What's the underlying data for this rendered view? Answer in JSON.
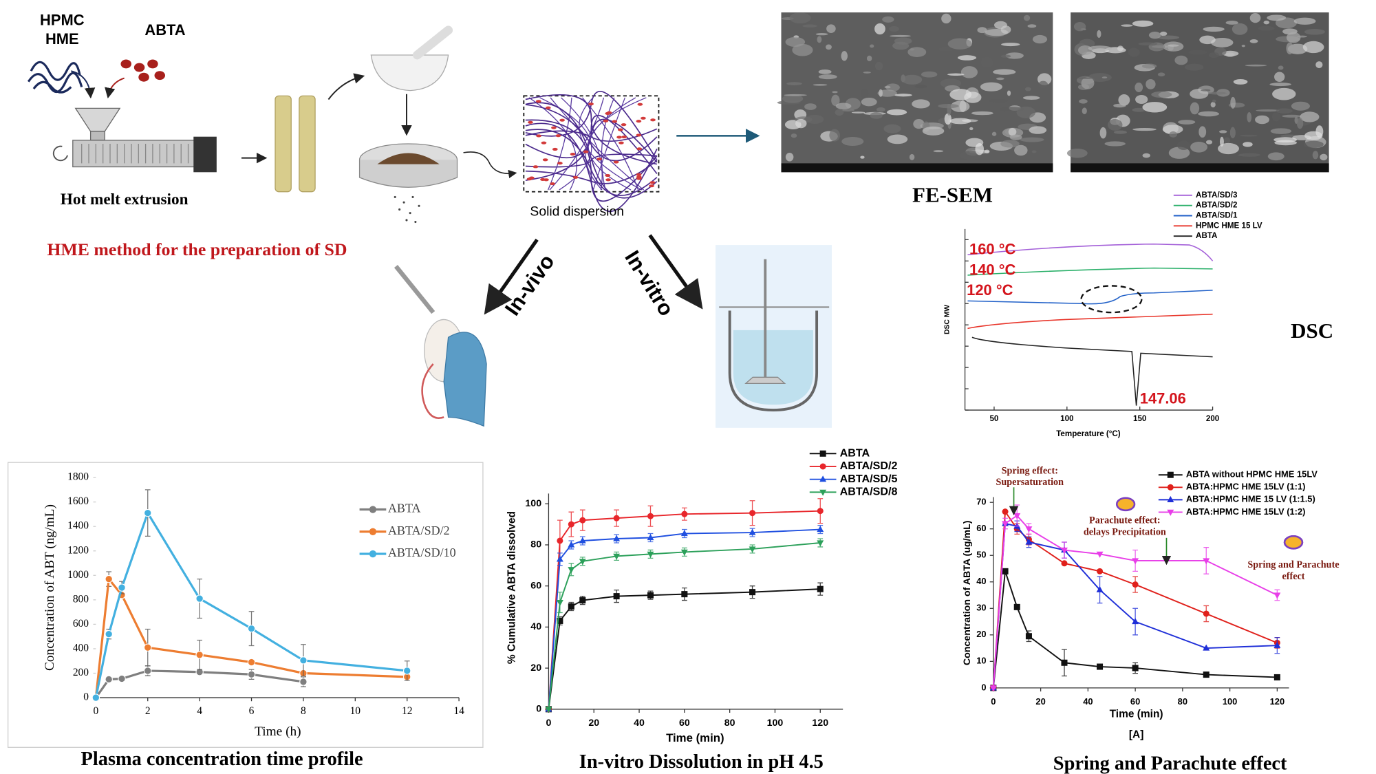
{
  "labels": {
    "polymer": [
      "HPMC",
      "HME"
    ],
    "drug": "ABTA",
    "process": "Hot melt extrusion",
    "method": "HME method for the preparation of SD",
    "product": "Solid dispersion",
    "sem": "FE-SEM",
    "in_vivo": "In-vivo",
    "in_vitro": "In-vitro"
  },
  "chart_data": [
    {
      "type": "line",
      "title": "Plasma concentration time profile",
      "xlabel": "Time (h)",
      "ylabel": "Concentration of ABT (ng/mL)",
      "x": [
        0,
        0.5,
        1,
        2,
        4,
        6,
        8,
        12
      ],
      "xlim": [
        0,
        14
      ],
      "xticks": [
        0,
        2,
        4,
        6,
        8,
        10,
        12,
        14
      ],
      "ylim": [
        0,
        1800
      ],
      "yticks": [
        0,
        200,
        400,
        600,
        800,
        1000,
        1200,
        1400,
        1600,
        1800
      ],
      "series": [
        {
          "name": "ABTA",
          "color": "#7f7f7f",
          "marker": "circle",
          "values": [
            0,
            150,
            155,
            220,
            210,
            190,
            130,
            null
          ],
          "errors": [
            0,
            0,
            0,
            40,
            0,
            40,
            40,
            null
          ]
        },
        {
          "name": "ABTA/SD/2",
          "color": "#ed7d31",
          "marker": "circle",
          "values": [
            0,
            970,
            840,
            410,
            350,
            290,
            200,
            170
          ],
          "errors": [
            0,
            60,
            0,
            150,
            120,
            0,
            0,
            15
          ]
        },
        {
          "name": "ABTA/SD/10",
          "color": "#43b0e0",
          "marker": "circle",
          "values": [
            0,
            520,
            900,
            1510,
            810,
            565,
            305,
            220
          ],
          "errors": [
            0,
            40,
            50,
            190,
            160,
            140,
            130,
            80
          ]
        }
      ]
    },
    {
      "type": "line",
      "title": "In-vitro Dissolution in pH 4.5",
      "xlabel": "Time (min)",
      "ylabel": "% Cumulative ABTA dissolved",
      "x": [
        0,
        5,
        10,
        15,
        30,
        45,
        60,
        90,
        120
      ],
      "xlim": [
        0,
        130
      ],
      "xticks": [
        0,
        20,
        40,
        60,
        80,
        100,
        120
      ],
      "ylim": [
        0,
        105
      ],
      "yticks": [
        0,
        20,
        40,
        60,
        80,
        100
      ],
      "series": [
        {
          "name": "ABTA",
          "color": "#111111",
          "marker": "square",
          "values": [
            0,
            43,
            50,
            53,
            55,
            55.5,
            56,
            57,
            58.5
          ],
          "errors": [
            0,
            2,
            2,
            2,
            3,
            2,
            3,
            3,
            3
          ]
        },
        {
          "name": "ABTA/SD/2",
          "color": "#e8262b",
          "marker": "circle",
          "values": [
            0,
            82,
            90,
            92,
            93,
            94,
            95,
            95.5,
            96.5
          ],
          "errors": [
            0,
            10,
            6,
            5,
            4,
            5,
            3,
            6,
            6
          ]
        },
        {
          "name": "ABTA/SD/5",
          "color": "#1f4fe0",
          "marker": "triangle-up",
          "values": [
            0,
            73,
            80,
            82,
            83,
            83.5,
            85.5,
            86,
            87.5
          ],
          "errors": [
            0,
            3,
            2,
            2,
            2,
            2,
            2,
            2,
            2
          ]
        },
        {
          "name": "ABTA/SD/8",
          "color": "#2ca05a",
          "marker": "triangle-down",
          "values": [
            0,
            52,
            68,
            72,
            74.5,
            75.5,
            76.5,
            78,
            81
          ],
          "errors": [
            0,
            5,
            3,
            2,
            2,
            2,
            2,
            2,
            2
          ]
        }
      ]
    },
    {
      "type": "line",
      "title": "Spring and Parachute effect",
      "xlabel": "Time (min)",
      "ylabel": "Concentration of ABTA (ug/mL)",
      "panel_label": "[A]",
      "annotations": [
        [
          "Spring effect:",
          "Supersaturation"
        ],
        [
          "Parachute effect:",
          "delays Precipitation"
        ],
        [
          "Spring and Parachute",
          "effect"
        ]
      ],
      "x": [
        0,
        5,
        10,
        15,
        30,
        45,
        60,
        90,
        120
      ],
      "xlim": [
        0,
        125
      ],
      "xticks": [
        0,
        20,
        40,
        60,
        80,
        100,
        120
      ],
      "ylim": [
        0,
        72
      ],
      "yticks": [
        0,
        10,
        20,
        30,
        40,
        50,
        60,
        70
      ],
      "series": [
        {
          "name": "ABTA without HPMC HME 15LV",
          "color": "#111111",
          "marker": "square",
          "values": [
            0,
            44,
            30.5,
            19.5,
            9.5,
            8,
            7.5,
            5,
            4
          ],
          "errors": [
            0,
            0,
            0,
            2,
            5,
            0,
            2,
            0,
            0
          ]
        },
        {
          "name": "ABTA:HPMC HME 15LV (1:1)",
          "color": "#e0201b",
          "marker": "circle",
          "values": [
            0,
            66.5,
            60,
            56,
            47,
            44,
            39,
            28,
            17
          ],
          "errors": [
            0,
            0,
            2,
            2,
            0,
            0,
            3,
            3,
            2
          ]
        },
        {
          "name": "ABTA:HPMC HME 15 LV (1:1.5)",
          "color": "#1f2fd8",
          "marker": "triangle-up",
          "values": [
            0,
            62,
            61,
            55,
            52,
            37,
            25,
            15,
            16
          ],
          "errors": [
            0,
            0,
            2,
            2,
            3,
            5,
            5,
            0,
            3
          ]
        },
        {
          "name": "ABTA:HPMC HME 15LV (1:2)",
          "color": "#e83ee8",
          "marker": "triangle-down",
          "values": [
            0,
            62,
            65,
            60,
            52,
            50.5,
            48,
            48,
            35
          ],
          "errors": [
            0,
            2,
            4,
            2,
            3,
            0,
            4,
            5,
            2
          ]
        }
      ]
    },
    {
      "type": "dsc",
      "title": "DSC",
      "xlabel": "Temperature (°C)",
      "ylabel": "DSC MW",
      "xlim": [
        30,
        200
      ],
      "xticks": [
        50,
        100,
        150,
        200
      ],
      "series": [
        {
          "name": "ABTA/SD/3",
          "color": "#a35fd8"
        },
        {
          "name": "ABTA/SD/2",
          "color": "#2bb06a"
        },
        {
          "name": "ABTA/SD/1",
          "color": "#2060c8"
        },
        {
          "name": "HPMC HME 15 LV",
          "color": "#e8352a"
        },
        {
          "name": "ABTA",
          "color": "#222222"
        }
      ],
      "annotations": [
        "160 °C",
        "140 °C",
        "120 °C",
        "147.06"
      ]
    }
  ]
}
